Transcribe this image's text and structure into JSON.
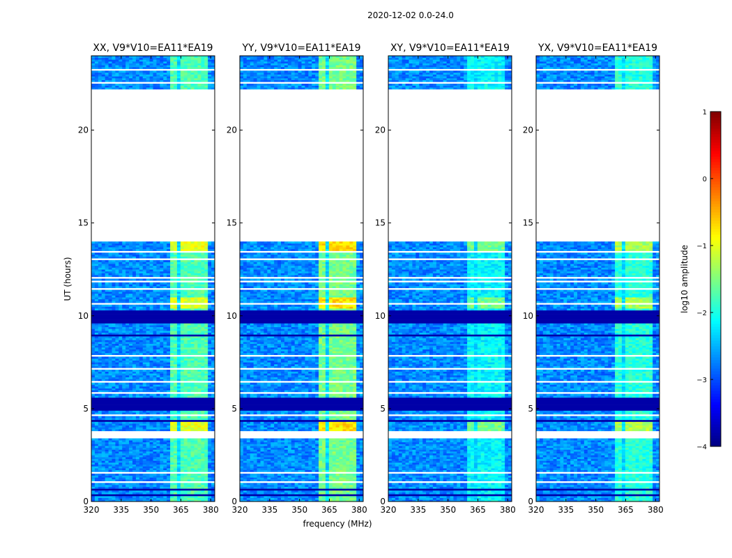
{
  "figure": {
    "suptitle": "2020-12-02 0.0-24.0",
    "xlabel": "frequency (MHz)",
    "ylabel": "UT (hours)"
  },
  "chart_data": {
    "type": "heatmap",
    "title": "2020-12-02 0.0-24.0",
    "xlabel": "frequency (MHz)",
    "ylabel": "UT (hours)",
    "xlim": [
      320,
      382
    ],
    "ylim": [
      0,
      24
    ],
    "xticks": [
      320,
      335,
      350,
      365,
      380
    ],
    "yticks": [
      0,
      5,
      10,
      15,
      20
    ],
    "panels": [
      {
        "title": "XX, V9*V10=EA11*EA19",
        "strength": 1.0
      },
      {
        "title": "YY, V9*V10=EA11*EA19",
        "strength": 1.1
      },
      {
        "title": "XY, V9*V10=EA11*EA19",
        "strength": 0.8
      },
      {
        "title": "YX, V9*V10=EA11*EA19",
        "strength": 0.9
      }
    ],
    "data_gaps_hours": [
      [
        14.0,
        22.1
      ],
      [
        3.4,
        3.8
      ]
    ],
    "rfi_band_mhz": [
      359,
      379
    ],
    "rfi_subbands_mhz": [
      [
        359,
        363
      ],
      [
        364,
        368
      ],
      [
        369,
        373
      ],
      [
        374,
        378
      ]
    ],
    "colorbar": {
      "label": "log10 amplitude",
      "min": -4,
      "max": 1,
      "ticks": [
        1,
        0,
        -1,
        -2,
        -3,
        -4
      ],
      "colormap": "jet"
    }
  }
}
